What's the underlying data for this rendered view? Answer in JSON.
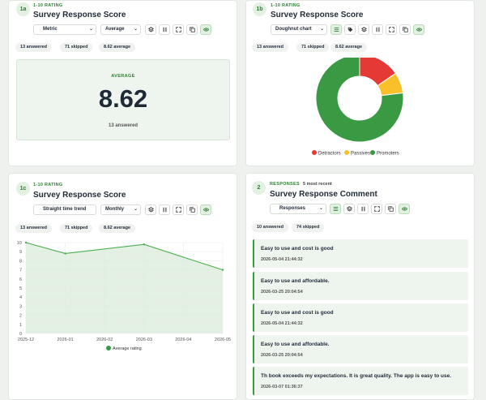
{
  "colors": {
    "accent": "#3a9a44",
    "detractors": "#e53935",
    "passives": "#f9c02a",
    "promoters": "#3a9a44"
  },
  "card_1a": {
    "badge": "1a",
    "kind": "1-10 RATING",
    "title": "Survey Response Score",
    "select_view": "Metric",
    "select_agg": "Average",
    "stats": [
      "13 answered",
      "71 skipped",
      "8.62 average"
    ],
    "metric_label": "AVERAGE",
    "metric_value": "8.62",
    "metric_sub": "13 answered"
  },
  "card_1b": {
    "badge": "1b",
    "kind": "1-10 RATING",
    "title": "Survey Response Score",
    "select_view": "Doughnut chart",
    "stats": [
      "13 answered",
      "71 skipped",
      "8.62 average"
    ]
  },
  "card_1c": {
    "badge": "1c",
    "kind": "1-10 RATING",
    "title": "Survey Response Score",
    "select_view": "Straight time trend",
    "select_period": "Monthly",
    "stats": [
      "13 answered",
      "71 skipped",
      "8.62 average"
    ]
  },
  "card_2": {
    "badge": "2",
    "kind": "RESPONSES",
    "kind_extra": "5 most recent",
    "title": "Survey Response Comment",
    "select_view": "Responses",
    "stats": [
      "10 answered",
      "74 skipped"
    ],
    "responses": [
      {
        "text": "Easy to use and cost is good",
        "date": "2026-05-04 21:44:32"
      },
      {
        "text": "Easy to use and affordable.",
        "date": "2026-03-25 20:04:54"
      },
      {
        "text": "Easy to use and cost is good",
        "date": "2026-05-04 21:44:32"
      },
      {
        "text": "Easy to use and affordable.",
        "date": "2026-03-25 20:04:54"
      },
      {
        "text": "Th book exceeds my expectations.  It is great quality.  The app is easy to use.",
        "date": "2026-03-07 01:36:37"
      }
    ]
  },
  "chart_data": [
    {
      "type": "pie",
      "donut": true,
      "categories": [
        "Detractors",
        "Passives",
        "Promoters"
      ],
      "values": [
        2,
        1,
        10
      ],
      "colors": [
        "#e53935",
        "#f9c02a",
        "#3a9a44"
      ],
      "legend": "bottom"
    },
    {
      "type": "area",
      "x": [
        "2025-12",
        "2026-01",
        "2026-02",
        "2026-03",
        "2026-04",
        "2026-05"
      ],
      "series": [
        {
          "name": "Average rating",
          "values": [
            10,
            8.8,
            null,
            9.8,
            null,
            7
          ]
        }
      ],
      "ylim": [
        0,
        10
      ],
      "yticks": [
        "0",
        "1",
        "2",
        "3",
        "4",
        "5",
        "6",
        "7",
        "8",
        "9",
        "10"
      ],
      "grid": true,
      "legend": "bottom"
    }
  ]
}
